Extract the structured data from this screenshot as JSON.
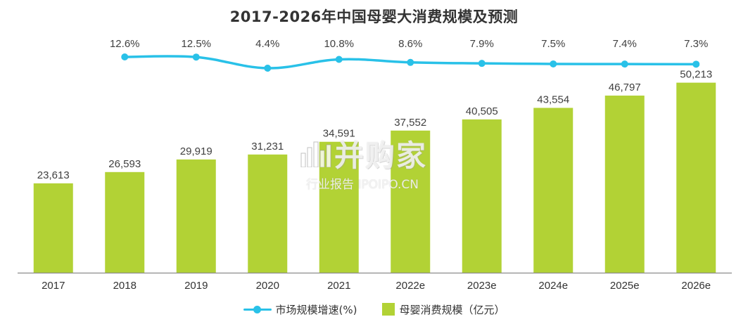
{
  "chart_data": {
    "type": "bar",
    "title": "2017-2026年中国母婴大消费规模及预测",
    "categories": [
      "2017",
      "2018",
      "2019",
      "2020",
      "2021",
      "2022e",
      "2023e",
      "2024e",
      "2025e",
      "2026e"
    ],
    "series": [
      {
        "name": "母婴消费规模（亿元）",
        "type": "bar",
        "values": [
          23613,
          26593,
          29919,
          31231,
          34591,
          37552,
          40505,
          43554,
          46797,
          50213
        ],
        "labels": [
          "23,613",
          "26,593",
          "29,919",
          "31,231",
          "34,591",
          "37,552",
          "40,505",
          "43,554",
          "46,797",
          "50,213"
        ],
        "color": "#b2d235"
      },
      {
        "name": "市场规模增速(%)",
        "type": "line",
        "values": [
          null,
          12.6,
          12.5,
          4.4,
          10.8,
          8.6,
          7.9,
          7.5,
          7.4,
          7.3
        ],
        "labels": [
          "",
          "12.6%",
          "12.5%",
          "4.4%",
          "10.8%",
          "8.6%",
          "7.9%",
          "7.5%",
          "7.4%",
          "7.3%"
        ],
        "color": "#29c1e8"
      }
    ],
    "ylim": [
      0,
      52000
    ],
    "grid": false,
    "legend": "bottom-center"
  },
  "legend": {
    "line_label": "市场规模增速(%)",
    "bar_label": "母婴消费规模（亿元）"
  },
  "watermark": {
    "brand": "并购家",
    "subtitle": "行业报告 IPOIPO.CN"
  }
}
